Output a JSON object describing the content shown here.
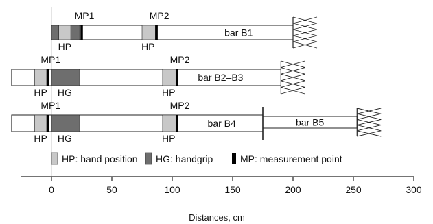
{
  "colors": {
    "hand_position": "#c8c8c8",
    "handgrip": "#6e6e6e",
    "measurement_point": "#000000",
    "bar_fill": "#ffffff",
    "outline": "#222222"
  },
  "bars": [
    {
      "id": "b1",
      "label": "bar B1",
      "x_start": 0,
      "x_end": 200,
      "fixed_end": true,
      "segments": [
        {
          "kind": "handgrip",
          "from": 0,
          "to": 6
        },
        {
          "kind": "hand_position",
          "from": 6,
          "to": 16
        },
        {
          "kind": "handgrip",
          "from": 16,
          "to": 23
        },
        {
          "kind": "measurement_point",
          "from": 24,
          "to": 26
        },
        {
          "kind": "hand_position",
          "from": 75,
          "to": 86
        },
        {
          "kind": "measurement_point",
          "from": 86,
          "to": 88
        }
      ],
      "above_labels": [
        {
          "text": "MP1",
          "x": 25
        },
        {
          "text": "MP2",
          "x": 87
        }
      ],
      "below_labels": [
        {
          "text": "HP",
          "x": 11
        },
        {
          "text": "HP",
          "x": 80
        }
      ]
    },
    {
      "id": "b2",
      "label": "bar B2–B3",
      "x_start": -33,
      "x_end": 190,
      "fixed_end": true,
      "segments": [
        {
          "kind": "hand_position",
          "from": -14,
          "to": -4
        },
        {
          "kind": "measurement_point",
          "from": -4,
          "to": -2
        },
        {
          "kind": "handgrip",
          "from": 0,
          "to": 23
        },
        {
          "kind": "hand_position",
          "from": 92,
          "to": 103
        },
        {
          "kind": "measurement_point",
          "from": 103,
          "to": 105
        }
      ],
      "above_labels": [
        {
          "text": "MP1",
          "x": -3
        },
        {
          "text": "MP2",
          "x": 104
        }
      ],
      "below_labels": [
        {
          "text": "HP",
          "x": -9
        },
        {
          "text": "HG",
          "x": 11
        },
        {
          "text": "HP",
          "x": 97
        }
      ]
    },
    {
      "id": "b4",
      "label": "bar B4",
      "x_start": -33,
      "x_end": 175,
      "fixed_end": false,
      "segments": [
        {
          "kind": "hand_position",
          "from": -14,
          "to": -4
        },
        {
          "kind": "measurement_point",
          "from": -4,
          "to": -2
        },
        {
          "kind": "handgrip",
          "from": 0,
          "to": 23
        },
        {
          "kind": "hand_position",
          "from": 92,
          "to": 103
        },
        {
          "kind": "measurement_point",
          "from": 103,
          "to": 105
        }
      ],
      "above_labels": [
        {
          "text": "MP1",
          "x": -3
        },
        {
          "text": "MP2",
          "x": 104
        }
      ],
      "below_labels": [
        {
          "text": "HP",
          "x": -9
        },
        {
          "text": "HG",
          "x": 11
        },
        {
          "text": "HP",
          "x": 97
        }
      ]
    },
    {
      "id": "b5",
      "label": "bar B5",
      "x_start": 175,
      "x_end": 253,
      "fixed_end": true,
      "segments": [],
      "above_labels": [],
      "below_labels": []
    }
  ],
  "legend": [
    {
      "kind": "hand_position",
      "text": "HP: hand position"
    },
    {
      "kind": "handgrip",
      "text": "HG: handgrip"
    },
    {
      "kind": "measurement_point",
      "text": "MP: measurement point"
    }
  ],
  "axis": {
    "ticks": [
      0,
      50,
      100,
      150,
      200,
      250,
      300
    ],
    "min": -33,
    "max": 300,
    "label": "Distances, cm"
  }
}
